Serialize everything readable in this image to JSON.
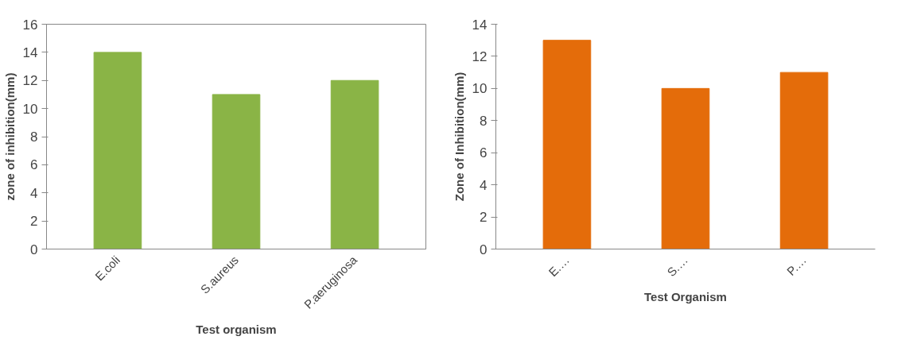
{
  "chart_data": [
    {
      "type": "bar",
      "categories": [
        "E.coli",
        "S.aureus",
        "P.aeruginosa"
      ],
      "values": [
        14,
        11,
        12
      ],
      "color": "#8ab446",
      "xlabel": "Test organism",
      "ylabel": "zone of inhibition(mm)",
      "ylim": [
        0,
        16
      ],
      "yticks": [
        0,
        2,
        4,
        6,
        8,
        10,
        12,
        14,
        16
      ],
      "grid": false
    },
    {
      "type": "bar",
      "categories": [
        "E.…",
        "S.…",
        "P.…"
      ],
      "values": [
        13,
        10,
        11
      ],
      "color": "#e46c0a",
      "xlabel": "Test Organism",
      "ylabel": "Zone of Inhibition(mm)",
      "ylim": [
        0,
        14
      ],
      "yticks": [
        0,
        2,
        4,
        6,
        8,
        10,
        12,
        14
      ],
      "grid": false
    }
  ]
}
